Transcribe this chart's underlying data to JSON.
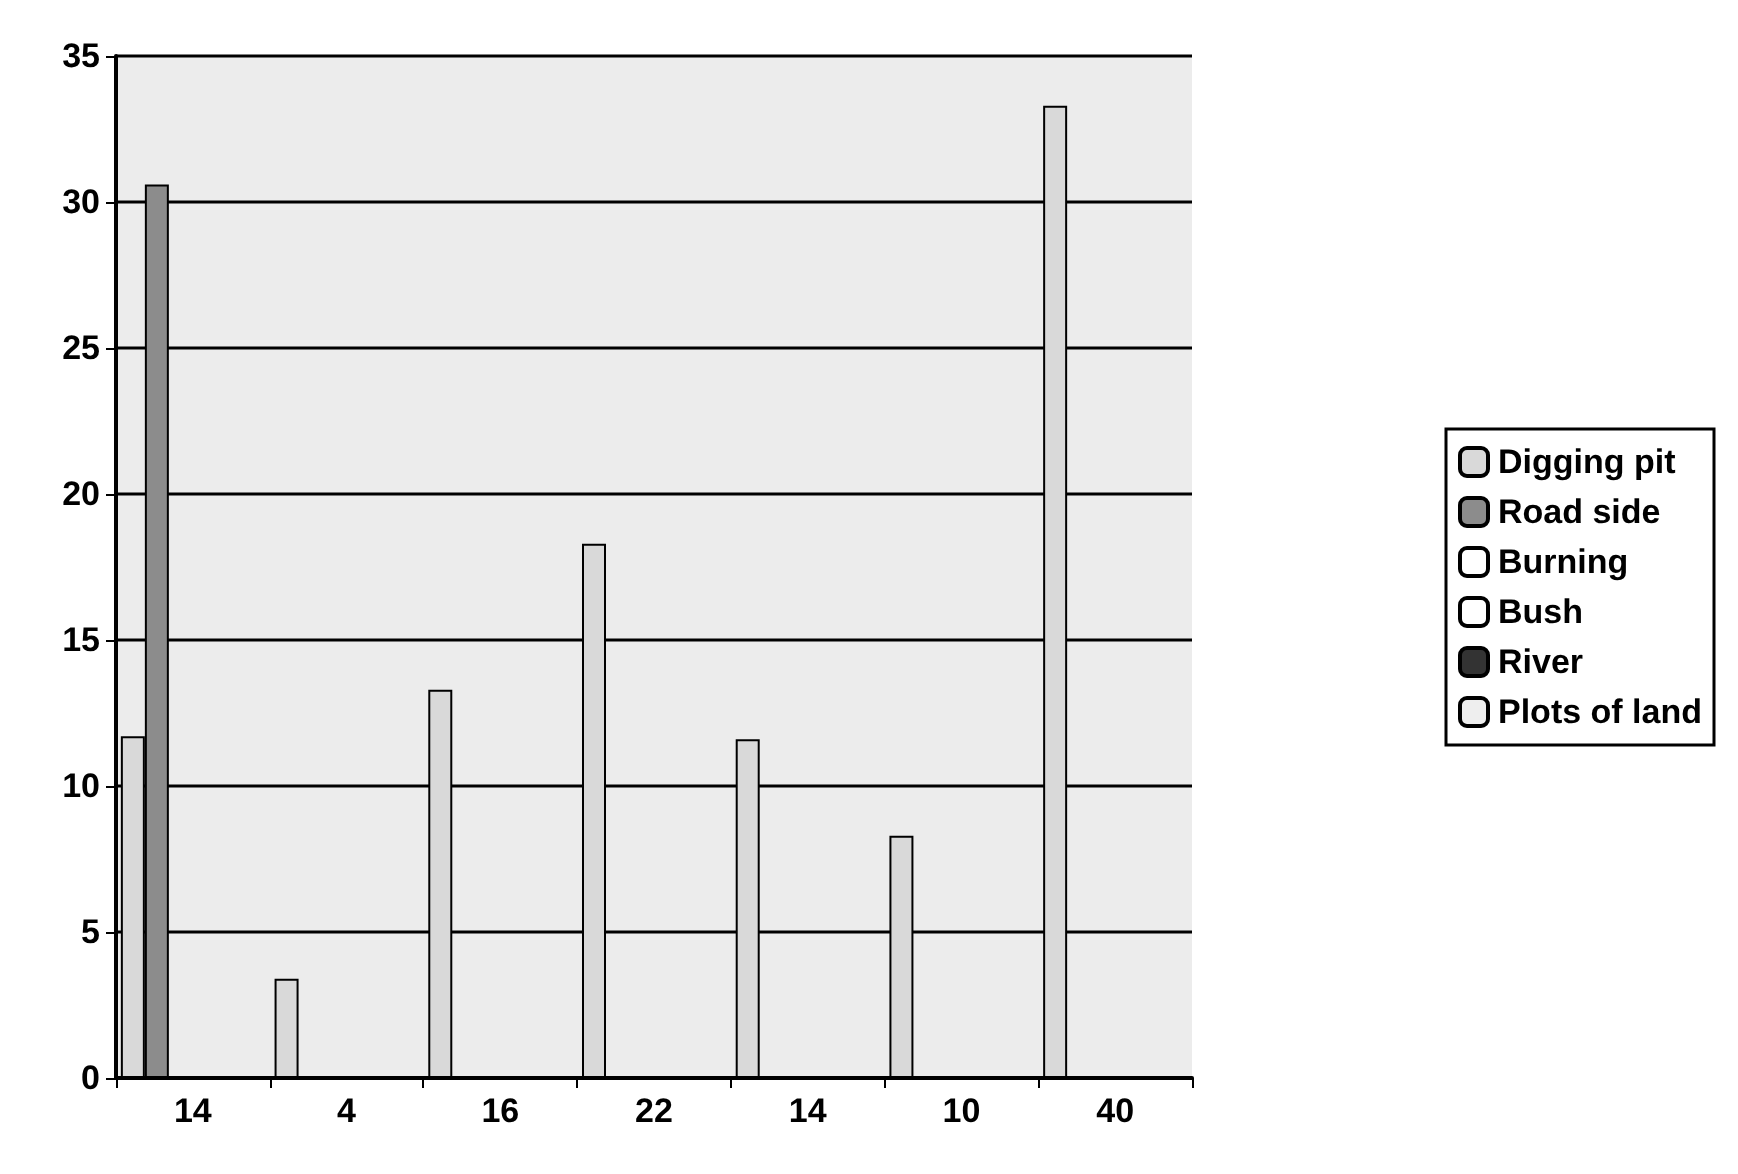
{
  "chart_data": {
    "type": "bar",
    "categories": [
      "14",
      "4",
      "16",
      "22",
      "14",
      "10",
      "40"
    ],
    "series": [
      {
        "name": "Digging pit",
        "color": "#d9d9d9",
        "values": [
          11.7,
          3.4,
          13.3,
          18.3,
          11.6,
          8.3,
          33.3
        ]
      },
      {
        "name": "Road side",
        "color": "#8c8c8c",
        "values": [
          30.6,
          null,
          null,
          null,
          null,
          null,
          null
        ]
      },
      {
        "name": "Burning",
        "color": "#ffffff",
        "values": [
          null,
          null,
          null,
          null,
          null,
          null,
          null
        ]
      },
      {
        "name": "Bush",
        "color": "#ffffff",
        "values": [
          null,
          null,
          null,
          null,
          null,
          null,
          null
        ]
      },
      {
        "name": "River",
        "color": "#333333",
        "values": [
          null,
          null,
          null,
          null,
          null,
          null,
          null
        ]
      },
      {
        "name": "Plots of land",
        "color": "#eeeeee",
        "values": [
          null,
          null,
          null,
          null,
          null,
          null,
          null
        ]
      }
    ],
    "ylim": [
      0,
      35
    ],
    "yticks": [
      0,
      5,
      10,
      15,
      20,
      25,
      30,
      35
    ],
    "grid": "y",
    "legend": "right"
  }
}
